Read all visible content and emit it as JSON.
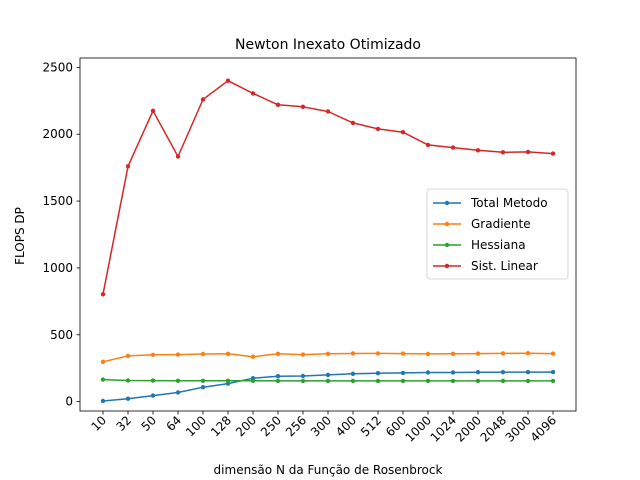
{
  "chart_data": {
    "type": "line",
    "title": "Newton Inexato Otimizado",
    "xlabel": "dimensão N da Função de Rosenbrock",
    "ylabel": "FLOPS DP",
    "categories": [
      "10",
      "32",
      "50",
      "64",
      "100",
      "128",
      "200",
      "250",
      "256",
      "300",
      "400",
      "512",
      "600",
      "1000",
      "1024",
      "2000",
      "2048",
      "3000",
      "4096"
    ],
    "ylim": [
      -70,
      2570
    ],
    "yticks": [
      0,
      500,
      1000,
      1500,
      2000,
      2500
    ],
    "grid": false,
    "legend_position": "center-right",
    "series": [
      {
        "name": "Total Metodo",
        "color": "#1f77b4",
        "values": [
          5,
          22,
          45,
          68,
          108,
          135,
          175,
          190,
          192,
          200,
          208,
          213,
          215,
          218,
          218,
          220,
          220,
          221,
          221
        ]
      },
      {
        "name": "Gradiente",
        "color": "#ff7f0e",
        "values": [
          298,
          342,
          350,
          352,
          356,
          358,
          336,
          358,
          352,
          358,
          360,
          361,
          359,
          357,
          358,
          359,
          361,
          362,
          359
        ]
      },
      {
        "name": "Hessiana",
        "color": "#2ca02c",
        "values": [
          165,
          158,
          157,
          156,
          156,
          156,
          156,
          155,
          155,
          155,
          155,
          155,
          155,
          155,
          155,
          155,
          155,
          155,
          155
        ]
      },
      {
        "name": "Sist. Linear",
        "color": "#d62728",
        "values": [
          803,
          1760,
          2175,
          1833,
          2260,
          2400,
          2305,
          2220,
          2205,
          2170,
          2085,
          2040,
          2015,
          1920,
          1900,
          1880,
          1865,
          1868,
          1855
        ]
      }
    ]
  }
}
